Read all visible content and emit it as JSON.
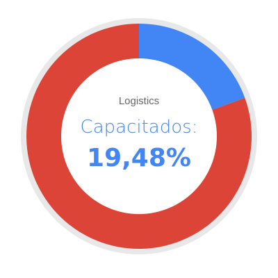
{
  "chart_data": {
    "type": "pie",
    "variant": "donut",
    "category": "Logistics",
    "caption": "Capacitados:",
    "value_label": "19,48%",
    "slices": [
      {
        "label": "Capacitados",
        "value": 19.48,
        "color": "#4285f4"
      },
      {
        "label": "",
        "value": 80.52,
        "color": "#db4437"
      }
    ],
    "track_color": "#e8e8e8",
    "center_color": "#ffffff"
  }
}
